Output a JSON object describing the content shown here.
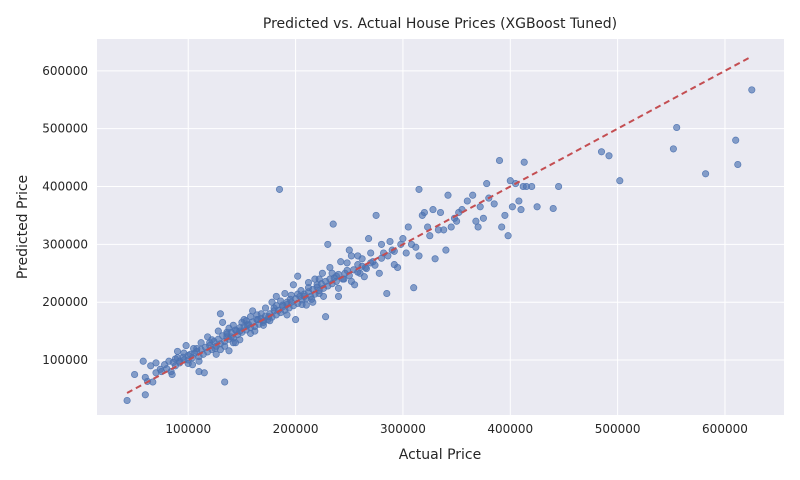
{
  "chart_data": {
    "type": "scatter",
    "title": "Predicted vs. Actual House Prices (XGBoost Tuned)",
    "xlabel": "Actual Price",
    "ylabel": "Predicted Price",
    "xlim": [
      15000,
      655000
    ],
    "ylim": [
      5000,
      655000
    ],
    "xticks": [
      100000,
      200000,
      300000,
      400000,
      500000,
      600000
    ],
    "yticks": [
      100000,
      200000,
      300000,
      400000,
      500000,
      600000
    ],
    "grid": true,
    "colors": {
      "points": "#4c72b0",
      "reference_line": "#c44e52",
      "background": "#eaeaf2"
    },
    "reference_line": {
      "from": [
        43000,
        43000
      ],
      "to": [
        625000,
        625000
      ],
      "style": "dashed"
    },
    "points": [
      [
        43000,
        30000
      ],
      [
        50000,
        75000
      ],
      [
        58000,
        98000
      ],
      [
        60000,
        40000
      ],
      [
        62000,
        63000
      ],
      [
        60000,
        70000
      ],
      [
        65000,
        90000
      ],
      [
        67000,
        62000
      ],
      [
        70000,
        95000
      ],
      [
        75000,
        80000
      ],
      [
        80000,
        85000
      ],
      [
        82000,
        98000
      ],
      [
        85000,
        75000
      ],
      [
        88000,
        102000
      ],
      [
        90000,
        115000
      ],
      [
        92000,
        95000
      ],
      [
        95000,
        105000
      ],
      [
        98000,
        125000
      ],
      [
        100000,
        100000
      ],
      [
        102000,
        110000
      ],
      [
        105000,
        120000
      ],
      [
        108000,
        115000
      ],
      [
        110000,
        80000
      ],
      [
        112000,
        130000
      ],
      [
        115000,
        78000
      ],
      [
        118000,
        140000
      ],
      [
        120000,
        125000
      ],
      [
        122000,
        135000
      ],
      [
        125000,
        120000
      ],
      [
        128000,
        150000
      ],
      [
        130000,
        180000
      ],
      [
        132000,
        165000
      ],
      [
        134000,
        62000
      ],
      [
        136000,
        145000
      ],
      [
        138000,
        155000
      ],
      [
        140000,
        140000
      ],
      [
        142000,
        160000
      ],
      [
        145000,
        150000
      ],
      [
        148000,
        135000
      ],
      [
        150000,
        165000
      ],
      [
        152000,
        170000
      ],
      [
        155000,
        160000
      ],
      [
        158000,
        175000
      ],
      [
        160000,
        185000
      ],
      [
        162000,
        150000
      ],
      [
        165000,
        170000
      ],
      [
        168000,
        180000
      ],
      [
        170000,
        165000
      ],
      [
        172000,
        190000
      ],
      [
        175000,
        175000
      ],
      [
        178000,
        200000
      ],
      [
        180000,
        185000
      ],
      [
        182000,
        210000
      ],
      [
        185000,
        395000
      ],
      [
        188000,
        195000
      ],
      [
        190000,
        215000
      ],
      [
        192000,
        200000
      ],
      [
        195000,
        205000
      ],
      [
        198000,
        230000
      ],
      [
        200000,
        170000
      ],
      [
        202000,
        245000
      ],
      [
        205000,
        220000
      ],
      [
        208000,
        210000
      ],
      [
        210000,
        195000
      ],
      [
        212000,
        225000
      ],
      [
        215000,
        205000
      ],
      [
        218000,
        240000
      ],
      [
        220000,
        230000
      ],
      [
        222000,
        215000
      ],
      [
        225000,
        250000
      ],
      [
        228000,
        175000
      ],
      [
        230000,
        300000
      ],
      [
        232000,
        260000
      ],
      [
        235000,
        335000
      ],
      [
        238000,
        245000
      ],
      [
        240000,
        210000
      ],
      [
        242000,
        270000
      ],
      [
        245000,
        240000
      ],
      [
        248000,
        255000
      ],
      [
        250000,
        290000
      ],
      [
        252000,
        280000
      ],
      [
        255000,
        230000
      ],
      [
        258000,
        265000
      ],
      [
        260000,
        250000
      ],
      [
        262000,
        275000
      ],
      [
        265000,
        260000
      ],
      [
        268000,
        310000
      ],
      [
        270000,
        285000
      ],
      [
        272000,
        270000
      ],
      [
        275000,
        350000
      ],
      [
        278000,
        250000
      ],
      [
        280000,
        300000
      ],
      [
        282000,
        285000
      ],
      [
        285000,
        215000
      ],
      [
        288000,
        305000
      ],
      [
        290000,
        290000
      ],
      [
        292000,
        265000
      ],
      [
        295000,
        260000
      ],
      [
        298000,
        300000
      ],
      [
        300000,
        310000
      ],
      [
        303000,
        285000
      ],
      [
        305000,
        330000
      ],
      [
        308000,
        300000
      ],
      [
        310000,
        225000
      ],
      [
        312000,
        295000
      ],
      [
        315000,
        395000
      ],
      [
        315000,
        280000
      ],
      [
        318000,
        350000
      ],
      [
        320000,
        355000
      ],
      [
        323000,
        330000
      ],
      [
        325000,
        315000
      ],
      [
        328000,
        360000
      ],
      [
        330000,
        275000
      ],
      [
        333000,
        325000
      ],
      [
        335000,
        355000
      ],
      [
        338000,
        325000
      ],
      [
        340000,
        290000
      ],
      [
        342000,
        385000
      ],
      [
        345000,
        330000
      ],
      [
        348000,
        345000
      ],
      [
        350000,
        340000
      ],
      [
        352000,
        355000
      ],
      [
        355000,
        360000
      ],
      [
        360000,
        375000
      ],
      [
        365000,
        385000
      ],
      [
        368000,
        340000
      ],
      [
        370000,
        330000
      ],
      [
        372000,
        365000
      ],
      [
        375000,
        345000
      ],
      [
        378000,
        405000
      ],
      [
        380000,
        380000
      ],
      [
        385000,
        370000
      ],
      [
        390000,
        445000
      ],
      [
        392000,
        330000
      ],
      [
        395000,
        350000
      ],
      [
        398000,
        315000
      ],
      [
        400000,
        410000
      ],
      [
        402000,
        365000
      ],
      [
        405000,
        405000
      ],
      [
        408000,
        375000
      ],
      [
        410000,
        360000
      ],
      [
        412000,
        400000
      ],
      [
        413000,
        442000
      ],
      [
        415000,
        400000
      ],
      [
        420000,
        400000
      ],
      [
        425000,
        365000
      ],
      [
        440000,
        362000
      ],
      [
        445000,
        400000
      ],
      [
        485000,
        460000
      ],
      [
        492000,
        453000
      ],
      [
        502000,
        410000
      ],
      [
        552000,
        465000
      ],
      [
        555000,
        502000
      ],
      [
        582000,
        422000
      ],
      [
        610000,
        480000
      ],
      [
        612000,
        438000
      ],
      [
        625000,
        567000
      ],
      [
        88000,
        90000
      ],
      [
        92000,
        98000
      ],
      [
        96000,
        100000
      ],
      [
        100000,
        108000
      ],
      [
        104000,
        104000
      ],
      [
        106000,
        112000
      ],
      [
        110000,
        106000
      ],
      [
        112000,
        118000
      ],
      [
        114000,
        110000
      ],
      [
        116000,
        122000
      ],
      [
        118000,
        114000
      ],
      [
        120000,
        130000
      ],
      [
        122000,
        118000
      ],
      [
        124000,
        132000
      ],
      [
        126000,
        124000
      ],
      [
        128000,
        136000
      ],
      [
        130000,
        128000
      ],
      [
        132000,
        142000
      ],
      [
        134000,
        132000
      ],
      [
        136000,
        140000
      ],
      [
        138000,
        136000
      ],
      [
        140000,
        148000
      ],
      [
        142000,
        138000
      ],
      [
        144000,
        152000
      ],
      [
        146000,
        144000
      ],
      [
        148000,
        156000
      ],
      [
        150000,
        148000
      ],
      [
        152000,
        158000
      ],
      [
        154000,
        152000
      ],
      [
        156000,
        162000
      ],
      [
        158000,
        156000
      ],
      [
        160000,
        166000
      ],
      [
        162000,
        158000
      ],
      [
        164000,
        170000
      ],
      [
        166000,
        162000
      ],
      [
        168000,
        172000
      ],
      [
        170000,
        168000
      ],
      [
        172000,
        176000
      ],
      [
        174000,
        170000
      ],
      [
        176000,
        180000
      ],
      [
        178000,
        174000
      ],
      [
        180000,
        190000
      ],
      [
        182000,
        178000
      ],
      [
        184000,
        186000
      ],
      [
        186000,
        182000
      ],
      [
        188000,
        192000
      ],
      [
        190000,
        186000
      ],
      [
        192000,
        196000
      ],
      [
        194000,
        190000
      ],
      [
        196000,
        200000
      ],
      [
        198000,
        194000
      ],
      [
        200000,
        206000
      ],
      [
        202000,
        198000
      ],
      [
        204000,
        210000
      ],
      [
        206000,
        204000
      ],
      [
        208000,
        214000
      ],
      [
        210000,
        206000
      ],
      [
        212000,
        218000
      ],
      [
        214000,
        210000
      ],
      [
        216000,
        222000
      ],
      [
        218000,
        214000
      ],
      [
        220000,
        226000
      ],
      [
        222000,
        220000
      ],
      [
        224000,
        232000
      ],
      [
        226000,
        224000
      ],
      [
        228000,
        236000
      ],
      [
        230000,
        228000
      ],
      [
        232000,
        240000
      ],
      [
        234000,
        232000
      ],
      [
        236000,
        242000
      ],
      [
        238000,
        236000
      ],
      [
        240000,
        248000
      ],
      [
        244000,
        240000
      ],
      [
        246000,
        250000
      ],
      [
        250000,
        246000
      ],
      [
        254000,
        256000
      ],
      [
        258000,
        252000
      ],
      [
        262000,
        262000
      ],
      [
        266000,
        258000
      ],
      [
        270000,
        268000
      ],
      [
        274000,
        264000
      ],
      [
        280000,
        276000
      ],
      [
        286000,
        280000
      ],
      [
        292000,
        288000
      ],
      [
        136000,
        148000
      ],
      [
        142000,
        130000
      ],
      [
        148000,
        150000
      ],
      [
        154000,
        168000
      ],
      [
        158000,
        146000
      ],
      [
        164000,
        178000
      ],
      [
        170000,
        160000
      ],
      [
        176000,
        168000
      ],
      [
        182000,
        194000
      ],
      [
        186000,
        202000
      ],
      [
        192000,
        178000
      ],
      [
        196000,
        212000
      ],
      [
        202000,
        214000
      ],
      [
        206000,
        196000
      ],
      [
        212000,
        234000
      ],
      [
        216000,
        200000
      ],
      [
        222000,
        240000
      ],
      [
        226000,
        210000
      ],
      [
        234000,
        250000
      ],
      [
        240000,
        224000
      ],
      [
        248000,
        268000
      ],
      [
        252000,
        236000
      ],
      [
        258000,
        280000
      ],
      [
        264000,
        244000
      ],
      [
        126000,
        110000
      ],
      [
        130000,
        118000
      ],
      [
        134000,
        124000
      ],
      [
        138000,
        116000
      ],
      [
        144000,
        130000
      ],
      [
        110000,
        98000
      ],
      [
        108000,
        120000
      ],
      [
        104000,
        92000
      ],
      [
        100000,
        94000
      ],
      [
        96000,
        112000
      ],
      [
        90000,
        104000
      ],
      [
        86000,
        96000
      ],
      [
        84000,
        80000
      ],
      [
        78000,
        92000
      ],
      [
        74000,
        84000
      ],
      [
        70000,
        78000
      ]
    ]
  }
}
